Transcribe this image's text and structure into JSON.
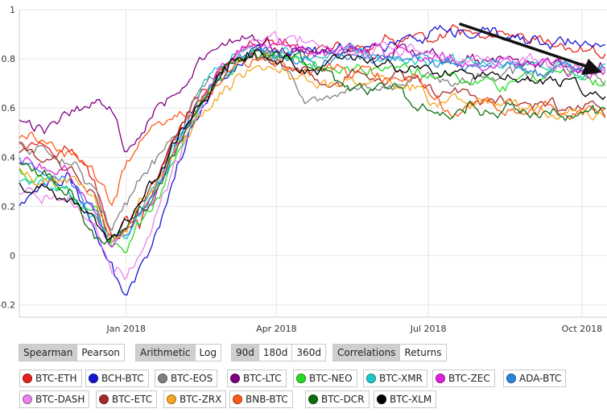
{
  "chart_data": {
    "type": "line",
    "ylim": [
      -0.25,
      1
    ],
    "y_ticks": [
      "1",
      "0.8",
      "0.6",
      "0.4",
      "0.2",
      "0",
      "-0.2"
    ],
    "y_tick_values": [
      1,
      0.8,
      0.6,
      0.4,
      0.2,
      0,
      -0.2
    ],
    "x_ticks": [
      "Jan 2018",
      "Apr 2018",
      "Jul 2018",
      "Oct 2018"
    ],
    "x_tick_positions": [
      64,
      154,
      245,
      337
    ],
    "x_range": [
      0,
      352
    ],
    "grid": true,
    "annotation": "arrow pointing down-right toward the BCH-BTC line near the right edge",
    "x_knots": [
      0,
      15,
      30,
      45,
      55,
      64,
      72,
      80,
      90,
      100,
      110,
      120,
      130,
      140,
      150,
      160,
      170,
      180,
      190,
      200,
      210,
      220,
      230,
      240,
      250,
      260,
      270,
      280,
      290,
      300,
      310,
      320,
      330,
      340,
      352
    ],
    "series": [
      {
        "name": "BTC-ETH",
        "color": "#e8201d",
        "values": [
          0.48,
          0.46,
          0.44,
          0.3,
          0.08,
          0.14,
          0.12,
          0.24,
          0.45,
          0.55,
          0.68,
          0.72,
          0.8,
          0.84,
          0.86,
          0.85,
          0.84,
          0.84,
          0.83,
          0.85,
          0.84,
          0.86,
          0.87,
          0.88,
          0.87,
          0.9,
          0.89,
          0.88,
          0.87,
          0.86,
          0.86,
          0.85,
          0.84,
          0.83,
          0.82
        ]
      },
      {
        "name": "BCH-BTC",
        "color": "#1515d6",
        "values": [
          0.2,
          0.3,
          0.32,
          0.1,
          -0.06,
          -0.18,
          -0.02,
          0.05,
          0.28,
          0.48,
          0.62,
          0.72,
          0.78,
          0.84,
          0.85,
          0.84,
          0.82,
          0.83,
          0.84,
          0.86,
          0.85,
          0.86,
          0.87,
          0.88,
          0.89,
          0.88,
          0.89,
          0.9,
          0.89,
          0.88,
          0.87,
          0.86,
          0.87,
          0.86,
          0.86
        ]
      },
      {
        "name": "BTC-EOS",
        "color": "#808080",
        "values": [
          0.45,
          0.42,
          0.4,
          0.28,
          0.1,
          0.2,
          0.3,
          0.36,
          0.45,
          0.55,
          0.68,
          0.74,
          0.8,
          0.84,
          0.82,
          0.74,
          0.66,
          0.63,
          0.62,
          0.63,
          0.64,
          0.68,
          0.7,
          0.72,
          0.74,
          0.73,
          0.72,
          0.73,
          0.74,
          0.75,
          0.74,
          0.76,
          0.74,
          0.73,
          0.72
        ]
      },
      {
        "name": "BTC-LTC",
        "color": "#800080",
        "values": [
          0.55,
          0.5,
          0.6,
          0.63,
          0.6,
          0.42,
          0.5,
          0.6,
          0.66,
          0.72,
          0.8,
          0.84,
          0.86,
          0.87,
          0.85,
          0.84,
          0.83,
          0.82,
          0.83,
          0.84,
          0.83,
          0.82,
          0.83,
          0.82,
          0.8,
          0.81,
          0.8,
          0.79,
          0.8,
          0.78,
          0.77,
          0.78,
          0.76,
          0.77,
          0.77
        ]
      },
      {
        "name": "BTC-NEO",
        "color": "#22dd22",
        "values": [
          0.35,
          0.3,
          0.25,
          0.18,
          0.05,
          0.04,
          0.12,
          0.2,
          0.35,
          0.5,
          0.64,
          0.74,
          0.8,
          0.84,
          0.82,
          0.8,
          0.78,
          0.76,
          0.77,
          0.78,
          0.77,
          0.76,
          0.78,
          0.76,
          0.74,
          0.75,
          0.73,
          0.72,
          0.71,
          0.72,
          0.7,
          0.72,
          0.71,
          0.7,
          0.7
        ]
      },
      {
        "name": "BTC-XMR",
        "color": "#1ec8c8",
        "values": [
          0.3,
          0.28,
          0.26,
          0.15,
          0.04,
          0.08,
          0.18,
          0.28,
          0.4,
          0.54,
          0.67,
          0.75,
          0.82,
          0.86,
          0.84,
          0.83,
          0.81,
          0.8,
          0.81,
          0.82,
          0.81,
          0.8,
          0.81,
          0.8,
          0.79,
          0.8,
          0.78,
          0.77,
          0.78,
          0.77,
          0.76,
          0.76,
          0.75,
          0.74,
          0.76
        ]
      },
      {
        "name": "BTC-ZEC",
        "color": "#e020e0",
        "values": [
          0.38,
          0.35,
          0.32,
          0.18,
          0.02,
          0.1,
          0.18,
          0.25,
          0.4,
          0.53,
          0.66,
          0.74,
          0.8,
          0.86,
          0.85,
          0.84,
          0.83,
          0.82,
          0.83,
          0.84,
          0.82,
          0.81,
          0.82,
          0.81,
          0.8,
          0.81,
          0.79,
          0.78,
          0.79,
          0.77,
          0.78,
          0.76,
          0.75,
          0.74,
          0.74
        ]
      },
      {
        "name": "ADA-BTC",
        "color": "#2a85e0",
        "values": [
          0.4,
          0.36,
          0.33,
          0.2,
          0.04,
          0.08,
          0.16,
          0.26,
          0.4,
          0.52,
          0.65,
          0.73,
          0.8,
          0.84,
          0.83,
          0.82,
          0.8,
          0.79,
          0.8,
          0.81,
          0.8,
          0.81,
          0.8,
          0.8,
          0.78,
          0.79,
          0.78,
          0.76,
          0.77,
          0.76,
          0.75,
          0.74,
          0.75,
          0.73,
          0.74
        ]
      },
      {
        "name": "BTC-DASH",
        "color": "#ec82ec",
        "values": [
          0.25,
          0.24,
          0.22,
          0.1,
          -0.05,
          -0.1,
          0.02,
          0.12,
          0.3,
          0.48,
          0.62,
          0.72,
          0.82,
          0.9,
          0.88,
          0.87,
          0.86,
          0.85,
          0.86,
          0.85,
          0.84,
          0.85,
          0.84,
          0.83,
          0.82,
          0.81,
          0.82,
          0.8,
          0.8,
          0.79,
          0.78,
          0.78,
          0.76,
          0.75,
          0.76
        ]
      },
      {
        "name": "BTC-ETC",
        "color": "#a52a2a",
        "values": [
          0.42,
          0.4,
          0.36,
          0.22,
          0.06,
          0.1,
          0.2,
          0.28,
          0.42,
          0.54,
          0.64,
          0.72,
          0.78,
          0.82,
          0.8,
          0.78,
          0.74,
          0.7,
          0.72,
          0.73,
          0.72,
          0.71,
          0.72,
          0.7,
          0.66,
          0.64,
          0.65,
          0.63,
          0.64,
          0.62,
          0.61,
          0.62,
          0.6,
          0.61,
          0.6
        ]
      },
      {
        "name": "BTC-ZRX",
        "color": "#f5a623",
        "values": [
          0.34,
          0.32,
          0.3,
          0.22,
          0.07,
          0.12,
          0.22,
          0.28,
          0.38,
          0.48,
          0.56,
          0.66,
          0.72,
          0.76,
          0.75,
          0.74,
          0.72,
          0.7,
          0.7,
          0.72,
          0.71,
          0.7,
          0.69,
          0.68,
          0.62,
          0.64,
          0.6,
          0.64,
          0.62,
          0.6,
          0.61,
          0.59,
          0.6,
          0.59,
          0.58
        ]
      },
      {
        "name": "BNB-BTC",
        "color": "#ff5a1a",
        "values": [
          0.46,
          0.48,
          0.42,
          0.32,
          0.2,
          0.36,
          0.45,
          0.52,
          0.55,
          0.56,
          0.62,
          0.7,
          0.76,
          0.8,
          0.79,
          0.78,
          0.76,
          0.75,
          0.76,
          0.74,
          0.73,
          0.72,
          0.73,
          0.72,
          0.64,
          0.58,
          0.6,
          0.62,
          0.6,
          0.59,
          0.57,
          0.6,
          0.58,
          0.59,
          0.58
        ]
      },
      {
        "name": "BTC-DCR",
        "color": "#0d6e0d",
        "values": [
          0.36,
          0.32,
          0.28,
          0.1,
          0.06,
          0.12,
          0.18,
          0.24,
          0.38,
          0.5,
          0.62,
          0.72,
          0.8,
          0.84,
          0.83,
          0.8,
          0.78,
          0.74,
          0.7,
          0.68,
          0.7,
          0.69,
          0.66,
          0.62,
          0.54,
          0.58,
          0.62,
          0.6,
          0.59,
          0.61,
          0.59,
          0.6,
          0.59,
          0.58,
          0.58
        ]
      },
      {
        "name": "BTC-XLM",
        "color": "#000000",
        "values": [
          0.28,
          0.26,
          0.24,
          0.12,
          0.06,
          0.14,
          0.2,
          0.3,
          0.42,
          0.55,
          0.65,
          0.73,
          0.8,
          0.84,
          0.82,
          0.8,
          0.76,
          0.77,
          0.78,
          0.8,
          0.79,
          0.78,
          0.76,
          0.78,
          0.76,
          0.74,
          0.75,
          0.73,
          0.74,
          0.72,
          0.7,
          0.72,
          0.7,
          0.68,
          0.66
        ]
      }
    ]
  },
  "controls": {
    "method": [
      "Spearman",
      "Pearson"
    ],
    "scale": [
      "Arithmetic",
      "Log"
    ],
    "window": [
      "90d",
      "180d",
      "360d"
    ],
    "view": [
      "Correlations",
      "Returns"
    ],
    "active": [
      "Spearman",
      "Arithmetic",
      "90d",
      "Correlations"
    ]
  },
  "legend": [
    {
      "label": "BTC-ETH",
      "color": "#e8201d"
    },
    {
      "label": "BCH-BTC",
      "color": "#1515d6"
    },
    {
      "label": "BTC-EOS",
      "color": "#808080"
    },
    {
      "label": "BTC-LTC",
      "color": "#800080"
    },
    {
      "label": "BTC-NEO",
      "color": "#22dd22"
    },
    {
      "label": "BTC-XMR",
      "color": "#1ec8c8"
    },
    {
      "label": "BTC-ZEC",
      "color": "#e020e0"
    },
    {
      "label": "ADA-BTC",
      "color": "#2a85e0"
    },
    {
      "label": "BTC-DASH",
      "color": "#ec82ec"
    },
    {
      "label": "BTC-ETC",
      "color": "#a52a2a"
    },
    {
      "label": "BTC-ZRX",
      "color": "#f5a623"
    },
    {
      "label": "BNB-BTC",
      "color": "#ff5a1a"
    },
    {
      "label": "BTC-DCR",
      "color": "#0d6e0d"
    },
    {
      "label": "BTC-XLM",
      "color": "#000000"
    }
  ]
}
